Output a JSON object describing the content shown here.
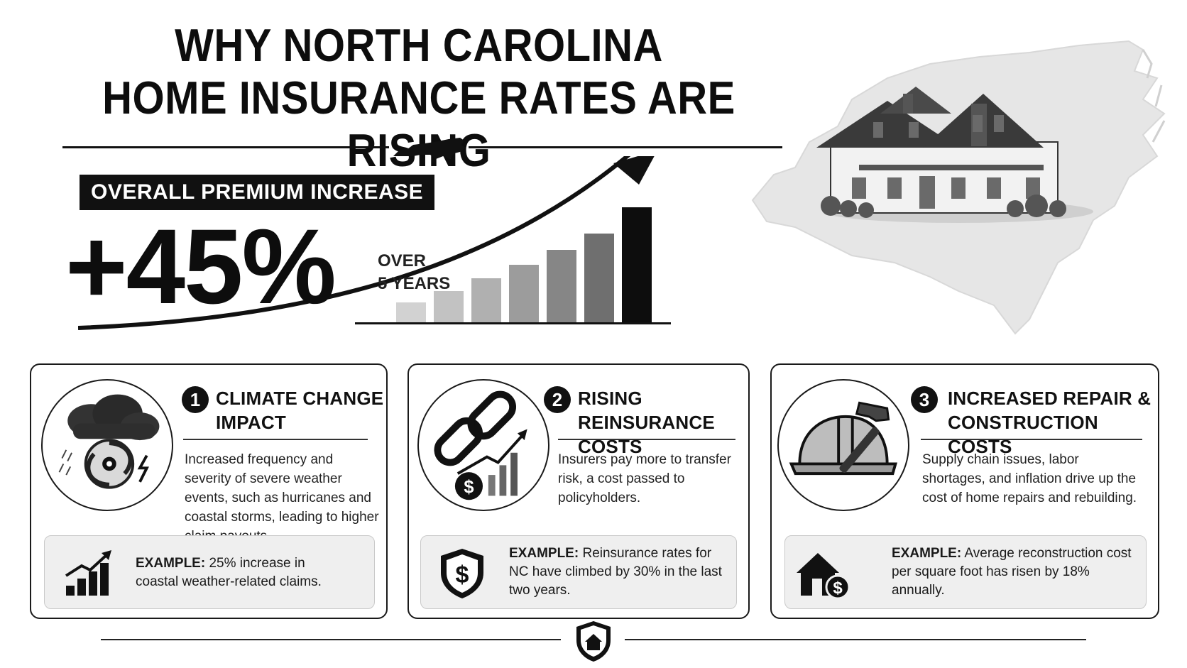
{
  "header": {
    "title_line1": "WHY NORTH CAROLINA",
    "title_line2": "HOME INSURANCE RATES ARE RISING"
  },
  "premium": {
    "label": "OVERALL PREMIUM INCREASE",
    "value": "+45%",
    "period_line1": "OVER",
    "period_line2": "5 YEARS",
    "bar_levels": [
      0.17,
      0.27,
      0.38,
      0.5,
      0.63,
      0.77,
      1.0
    ],
    "bar_shades": [
      "#d2d2d2",
      "#c2c2c2",
      "#b0b0b0",
      "#9c9c9c",
      "#868686",
      "#6f6f6f",
      "#0d0d0d"
    ]
  },
  "cards": [
    {
      "number": "1",
      "title_line1": "CLIMATE CHANGE",
      "title_line2": "IMPACT",
      "description": "Increased frequency and severity of severe weather events, such as hurricanes and coastal storms, leading to higher claim payouts.",
      "icon": "storm-hurricane-icon",
      "example_label": "EXAMPLE:",
      "example_text": " 25% increase in coastal weather-related claims.",
      "example_icon": "rising-bar-chart-icon"
    },
    {
      "number": "2",
      "title_line1": "RISING",
      "title_line2": "REINSURANCE COSTS",
      "description": "Insurers pay more to transfer risk, a cost passed to policyholders.",
      "icon": "chain-link-dollar-icon",
      "example_label": "EXAMPLE:",
      "example_text": " Reinsurance rates for NC have climbed by 30% in the last two years.",
      "example_icon": "shield-dollar-icon"
    },
    {
      "number": "3",
      "title_line1": "INCREASED REPAIR &",
      "title_line2": "CONSTRUCTION COSTS",
      "description": "Supply chain issues, labor shortages, and inflation drive up the cost of home repairs and rebuilding.",
      "icon": "hard-hat-hammer-icon",
      "example_label": "EXAMPLE:",
      "example_text": " Average reconstruction cost per square foot has risen by 18% annually.",
      "example_icon": "house-dollar-icon"
    }
  ],
  "colors": {
    "ink": "#111111",
    "panel": "#efefef",
    "map": "#e6e6e6"
  }
}
